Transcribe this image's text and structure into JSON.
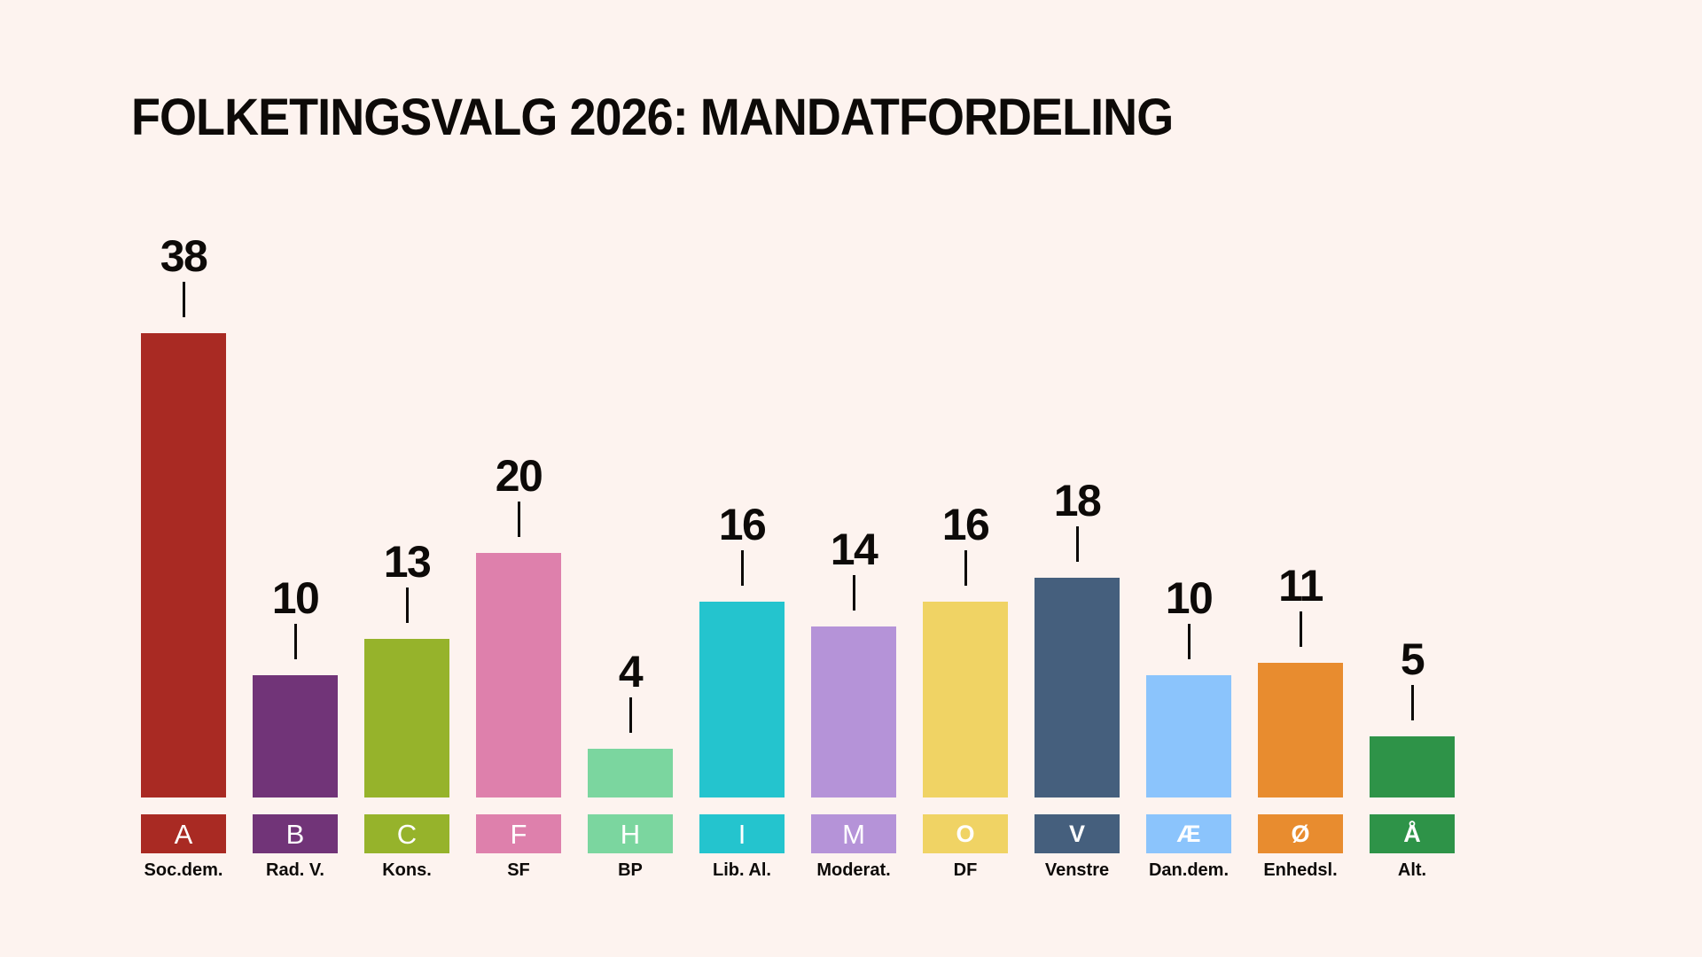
{
  "background_color": "#FDF3EF",
  "text_color": "#0D0A08",
  "header": {
    "title": "FOLKETINGSVALG 2026: MANDATFORDELING"
  },
  "chart_data": {
    "type": "bar",
    "title": "FOLKETINGSVALG 2026: MANDATFORDELING",
    "xlabel": "",
    "ylabel": "",
    "ylim": [
      0,
      38
    ],
    "grid": false,
    "legend_position": "letter-boxes-below-bars",
    "categories": [
      "A",
      "B",
      "C",
      "F",
      "H",
      "I",
      "M",
      "O",
      "V",
      "Æ",
      "Ø",
      "Å"
    ],
    "category_names": [
      "Soc.dem.",
      "Rad. V.",
      "Kons.",
      "SF",
      "BP",
      "Lib. Al.",
      "Moderat.",
      "DF",
      "Venstre",
      "Dan.dem.",
      "Enhedsl.",
      "Alt."
    ],
    "values": [
      38,
      10,
      13,
      20,
      4,
      16,
      14,
      16,
      18,
      10,
      11,
      5
    ],
    "colors": [
      "#A92A23",
      "#713478",
      "#96B32B",
      "#DE80AC",
      "#7BD69F",
      "#24C4CE",
      "#B593D8",
      "#F0D364",
      "#455F7D",
      "#8BC4FC",
      "#E88C2F",
      "#2E9348"
    ],
    "letter_weights": [
      "regular",
      "regular",
      "regular",
      "regular",
      "regular",
      "regular",
      "regular",
      "bold",
      "bold",
      "bold",
      "bold",
      "bold"
    ],
    "callout_line_color": "#0D0A08"
  }
}
